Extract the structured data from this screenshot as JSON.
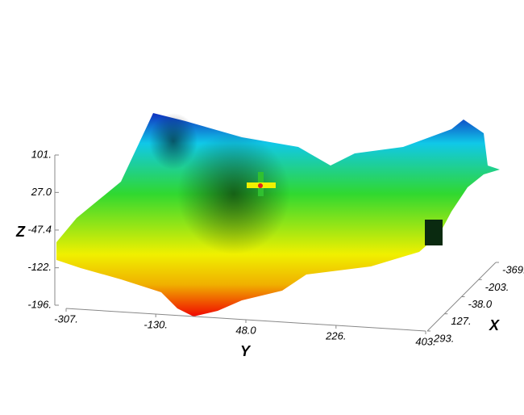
{
  "chart_data": {
    "type": "surface3d",
    "x_label": "X",
    "y_label": "Y",
    "z_label": "Z",
    "xlim": [
      293,
      -369
    ],
    "xticks": [
      {
        "value": 293,
        "label": "293."
      },
      {
        "value": 127,
        "label": "127."
      },
      {
        "value": -38.0,
        "label": "-38.0"
      },
      {
        "value": -203,
        "label": "-203."
      },
      {
        "value": -369,
        "label": "-369."
      }
    ],
    "ylim": [
      -307,
      403
    ],
    "yticks": [
      {
        "value": -307,
        "label": "-307."
      },
      {
        "value": -130,
        "label": "-130."
      },
      {
        "value": 48.0,
        "label": "48.0"
      },
      {
        "value": 226,
        "label": "226."
      },
      {
        "value": 403,
        "label": "403."
      }
    ],
    "zlim": [
      -196,
      101
    ],
    "zticks": [
      {
        "value": 101,
        "label": "101."
      },
      {
        "value": 27.0,
        "label": "27.0"
      },
      {
        "value": -47.4,
        "label": "-47.4"
      },
      {
        "value": -122,
        "label": "-122."
      },
      {
        "value": -196,
        "label": "-196."
      }
    ]
  }
}
